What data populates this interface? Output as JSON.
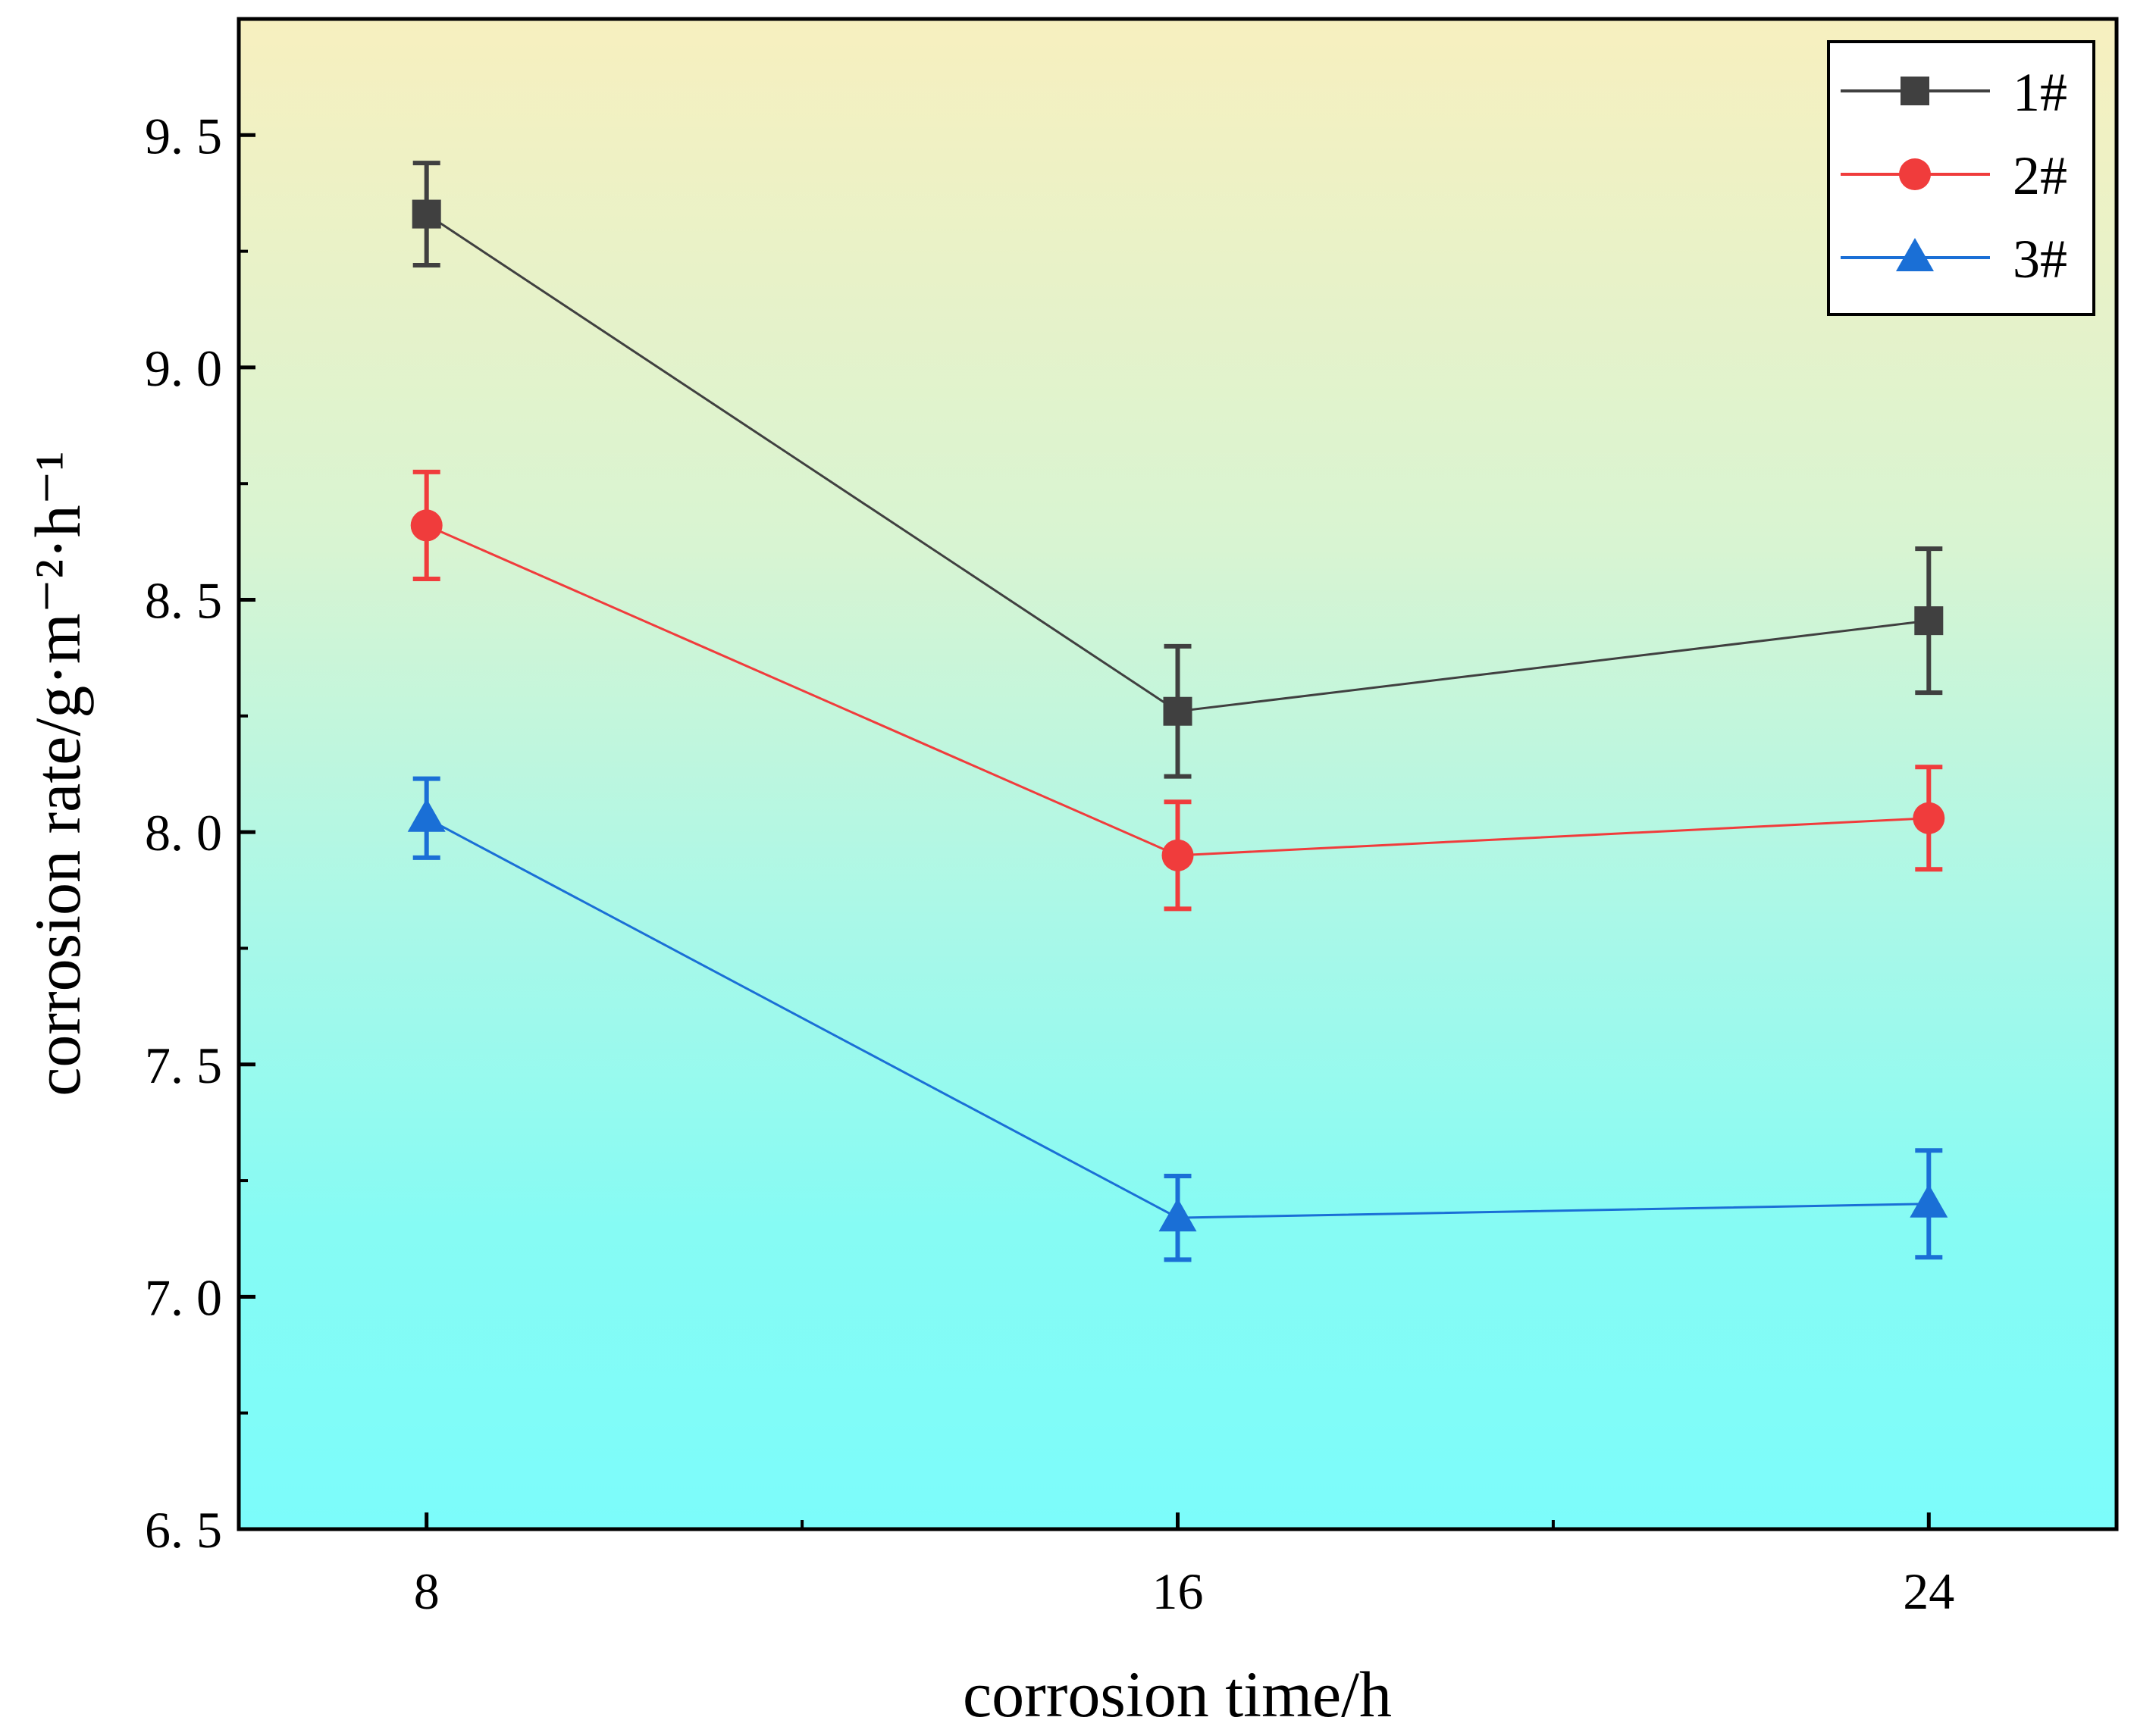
{
  "chart_data": {
    "type": "line",
    "title": "",
    "xlabel": "corrosion time/h",
    "ylabel": "corrosion rate/g·m⁻²·h⁻¹",
    "x": [
      8,
      16,
      24
    ],
    "x_tick_labels": [
      "8",
      "16",
      "24"
    ],
    "xlim": [
      6,
      26
    ],
    "ylim": [
      6.5,
      9.75
    ],
    "y_ticks": [
      6.5,
      7.0,
      7.5,
      8.0,
      8.5,
      9.0,
      9.5
    ],
    "y_tick_labels": [
      "6. 5",
      "7. 0",
      "7. 5",
      "8. 0",
      "8. 5",
      "9. 0",
      "9. 5"
    ],
    "grid": false,
    "legend_position": "top-right",
    "background": "vertical gradient from pale yellow (top) to cyan (bottom)",
    "series": [
      {
        "name": "1#",
        "marker": "square",
        "color": "#404040",
        "values": [
          9.33,
          8.26,
          8.455
        ],
        "errors": [
          0.11,
          0.14,
          0.155
        ]
      },
      {
        "name": "2#",
        "marker": "circle",
        "color": "#f03c3c",
        "values": [
          8.66,
          7.95,
          8.03
        ],
        "errors": [
          0.115,
          0.115,
          0.11
        ]
      },
      {
        "name": "3#",
        "marker": "triangle",
        "color": "#1a6fd6",
        "values": [
          8.03,
          7.17,
          7.2
        ],
        "errors": [
          0.085,
          0.09,
          0.115
        ]
      }
    ]
  }
}
